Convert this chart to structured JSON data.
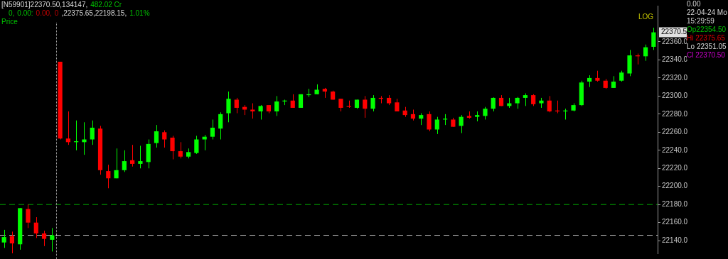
{
  "chart_data": {
    "type": "candlestick",
    "categories": [
      null,
      null,
      null,
      null,
      null,
      null,
      null,
      null,
      null,
      null,
      null,
      null,
      null,
      null,
      null,
      null,
      null,
      null,
      null,
      null,
      null,
      null,
      null,
      null,
      null,
      null,
      null,
      null,
      null,
      null,
      null,
      null,
      null,
      null,
      null,
      null,
      null,
      null,
      null,
      null,
      null,
      null,
      null,
      null,
      null,
      null,
      null,
      null,
      null,
      null,
      null,
      null,
      null,
      null,
      null,
      null,
      null,
      null,
      null,
      null,
      null,
      null,
      null,
      null,
      null,
      null,
      null,
      null,
      null,
      null,
      null,
      null,
      null,
      null,
      null,
      null,
      null,
      null,
      null,
      null,
      null,
      null
    ],
    "ohlc": [
      [
        22138,
        22152,
        22132,
        22144
      ],
      [
        22145,
        22150,
        22126,
        22137
      ],
      [
        22136,
        22176,
        22130,
        22176
      ],
      [
        22175,
        22180,
        22154,
        22160
      ],
      [
        22160,
        22166,
        22143,
        22148
      ],
      [
        22148,
        22151,
        22134,
        22142
      ],
      [
        22141,
        22154,
        22128,
        22146
      ],
      [
        22338,
        22338,
        22252,
        22253
      ],
      [
        22253,
        22283,
        22246,
        22249
      ],
      [
        22249,
        22273,
        22240,
        22250
      ],
      [
        22249,
        22271,
        22235,
        22252
      ],
      [
        22252,
        22273,
        22246,
        22265
      ],
      [
        22264,
        22267,
        22213,
        22218
      ],
      [
        22217,
        22224,
        22198,
        22209
      ],
      [
        22209,
        22242,
        22209,
        22218
      ],
      [
        22218,
        22240,
        22216,
        22228
      ],
      [
        22229,
        22246,
        22222,
        22225
      ],
      [
        22225,
        22245,
        22220,
        22228
      ],
      [
        22227,
        22252,
        22220,
        22247
      ],
      [
        22248,
        22268,
        22243,
        22261
      ],
      [
        22260,
        22262,
        22243,
        22252
      ],
      [
        22254,
        22256,
        22230,
        22239
      ],
      [
        22239,
        22249,
        22231,
        22233
      ],
      [
        22233,
        22242,
        22231,
        22238
      ],
      [
        22237,
        22256,
        22236,
        22252
      ],
      [
        22252,
        22257,
        22240,
        22255
      ],
      [
        22255,
        22274,
        22252,
        22265
      ],
      [
        22264,
        22282,
        22252,
        22280
      ],
      [
        22281,
        22305,
        22271,
        22297
      ],
      [
        22296,
        22298,
        22281,
        22287
      ],
      [
        22288,
        22290,
        22279,
        22285
      ],
      [
        22285,
        22292,
        22275,
        22283
      ],
      [
        22283,
        22290,
        22274,
        22289
      ],
      [
        22290,
        22290,
        22281,
        22283
      ],
      [
        22283,
        22300,
        22278,
        22294
      ],
      [
        22294,
        22296,
        22290,
        22295
      ],
      [
        22295,
        22302,
        22287,
        22287
      ],
      [
        22287,
        22302,
        22287,
        22302
      ],
      [
        22301,
        22308,
        22299,
        22302
      ],
      [
        22302,
        22313,
        22302,
        22307
      ],
      [
        22308,
        22309,
        22298,
        22305
      ],
      [
        22305,
        22306,
        22296,
        22296
      ],
      [
        22297,
        22297,
        22283,
        22287
      ],
      [
        22289,
        22295,
        22287,
        22288
      ],
      [
        22287,
        22296,
        22286,
        22296
      ],
      [
        22296,
        22300,
        22276,
        22286
      ],
      [
        22286,
        22301,
        22283,
        22298
      ],
      [
        22298,
        22300,
        22292,
        22297
      ],
      [
        22298,
        22301,
        22290,
        22292
      ],
      [
        22293,
        22297,
        22283,
        22283
      ],
      [
        22284,
        22288,
        22277,
        22279
      ],
      [
        22280,
        22285,
        22273,
        22275
      ],
      [
        22275,
        22281,
        22268,
        22279
      ],
      [
        22280,
        22283,
        22261,
        22263
      ],
      [
        22263,
        22277,
        22258,
        22274
      ],
      [
        22274,
        22280,
        22268,
        22275
      ],
      [
        22274,
        22276,
        22266,
        22266
      ],
      [
        22267,
        22279,
        22259,
        22277
      ],
      [
        22278,
        22283,
        22275,
        22276
      ],
      [
        22277,
        22283,
        22272,
        22279
      ],
      [
        22278,
        22288,
        22274,
        22286
      ],
      [
        22286,
        22298.5,
        22283,
        22298
      ],
      [
        22298,
        22301,
        22289,
        22289
      ],
      [
        22289,
        22298,
        22287,
        22292
      ],
      [
        22292,
        22299,
        22286,
        22298
      ],
      [
        22298,
        22303,
        22289,
        22301
      ],
      [
        22301,
        22302,
        22289,
        22291
      ],
      [
        22292,
        22298,
        22287,
        22295
      ],
      [
        22295,
        22300,
        22282,
        22283
      ],
      [
        22284,
        22295,
        22281,
        22283
      ],
      [
        22283,
        22286,
        22274,
        22284
      ],
      [
        22284,
        22292,
        22283,
        22290
      ],
      [
        22290,
        22317,
        22289,
        22315
      ],
      [
        22316,
        22323,
        22310,
        22320
      ],
      [
        22320,
        22328,
        22316,
        22317
      ],
      [
        22317,
        22319,
        22308,
        22309
      ],
      [
        22309,
        22322,
        22309,
        22316
      ],
      [
        22317,
        22328,
        22316,
        22326
      ],
      [
        22325,
        22351,
        22322,
        22345
      ],
      [
        22345,
        22347,
        22335,
        22344
      ],
      [
        22344,
        22357,
        22339,
        22354
      ],
      [
        22354.5,
        22375.65,
        22351.05,
        22370.5
      ]
    ],
    "colors": [
      "#00ff00",
      "#ff0000",
      "#00ff00",
      "#ff0000",
      "#ff0000",
      "#ff0000",
      "#00ff00",
      "#ff0000",
      "#ff0000",
      "#00ff00",
      "#00ff00",
      "#00ff00",
      "#ff0000",
      "#ff0000",
      "#00ff00",
      "#00ff00",
      "#ff0000",
      "#00ff00",
      "#00ff00",
      "#00ff00",
      "#ff0000",
      "#ff0000",
      "#ff0000",
      "#00ff00",
      "#00ff00",
      "#00ff00",
      "#00ff00",
      "#00ff00",
      "#00ff00",
      "#ff0000",
      "#ff0000",
      "#ff0000",
      "#00ff00",
      "#ff0000",
      "#00ff00",
      "#00ff00",
      "#ff0000",
      "#00ff00",
      "#00ff00",
      "#00ff00",
      "#ff0000",
      "#ff0000",
      "#ff0000",
      "#ff0000",
      "#00ff00",
      "#ff0000",
      "#00ff00",
      "#ff0000",
      "#ff0000",
      "#ff0000",
      "#ff0000",
      "#ff0000",
      "#00ff00",
      "#ff0000",
      "#00ff00",
      "#00ff00",
      "#ff0000",
      "#00ff00",
      "#ff0000",
      "#00ff00",
      "#00ff00",
      "#00ff00",
      "#ff0000",
      "#00ff00",
      "#00ff00",
      "#00ff00",
      "#ff0000",
      "#00ff00",
      "#ff0000",
      "#ff0000",
      "#00ff00",
      "#00ff00",
      "#00ff00",
      "#00ff00",
      "#ff0000",
      "#ff0000",
      "#00ff00",
      "#00ff00",
      "#00ff00",
      "#ff0000",
      "#00ff00",
      "#00ff00"
    ],
    "ylim": [
      22126,
      22400
    ],
    "yticks": [
      {
        "value": 22140,
        "label": "22140.0"
      },
      {
        "value": 22160,
        "label": "22160.0"
      },
      {
        "value": 22180,
        "label": "22180.0"
      },
      {
        "value": 22200,
        "label": "22200.0"
      },
      {
        "value": 22220,
        "label": "22220.0"
      },
      {
        "value": 22240,
        "label": "22240.0"
      },
      {
        "value": 22260,
        "label": "22260.0"
      },
      {
        "value": 22280,
        "label": "22280.0"
      },
      {
        "value": 22300,
        "label": "22300.0"
      },
      {
        "value": 22320,
        "label": "22320.0"
      },
      {
        "value": 22340,
        "label": "22340.0"
      },
      {
        "value": 22360,
        "label": "22360.0"
      }
    ],
    "tick_labels": "y",
    "ref_lines": [
      {
        "axis": "y",
        "value": 22180,
        "color": "#00a000",
        "line_style": "dashed"
      },
      {
        "axis": "y",
        "value": 22146,
        "color": "#c0c0c0",
        "line_style": "dashed"
      }
    ],
    "annotations": [
      "[N59901]22370.50,134147,",
      "482.02  Cr",
      "0,",
      "0.00:",
      "0.00,",
      "0",
      ",22375.65,22198.15,",
      "1.01%",
      "Price",
      "LOG",
      "0.00",
      "22-04-24 Mo",
      "15:29:59",
      "Op22354.50",
      "Hi 22375.65",
      "Lo 22351.05",
      "Cl 22370.50",
      {
        "text": "22370.5",
        "y": 22370.5
      }
    ]
  }
}
